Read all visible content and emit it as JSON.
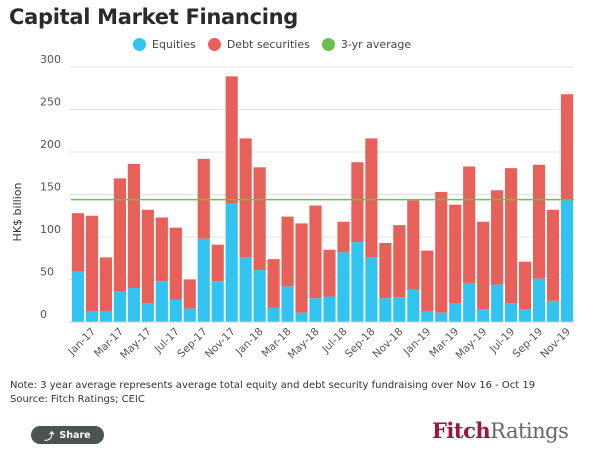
{
  "chart_data": {
    "type": "bar",
    "stacked": true,
    "title": "Capital Market Financing",
    "ylabel": "HK$ billion",
    "xlabel": "",
    "ylim": [
      0,
      300
    ],
    "y_ticks": [
      "0",
      "50",
      "100",
      "150",
      "200",
      "250",
      "300"
    ],
    "grid": true,
    "legend_placement": "top",
    "categories": [
      "Dec-16",
      "Jan-17",
      "Feb-17",
      "Mar-17",
      "Apr-17",
      "May-17",
      "Jun-17",
      "Jul-17",
      "Aug-17",
      "Sep-17",
      "Oct-17",
      "Nov-17",
      "Dec-17",
      "Jan-18",
      "Feb-18",
      "Mar-18",
      "Apr-18",
      "May-18",
      "Jun-18",
      "Jul-18",
      "Aug-18",
      "Sep-18",
      "Oct-18",
      "Nov-18",
      "Dec-18",
      "Jan-19",
      "Feb-19",
      "Mar-19",
      "Apr-19",
      "May-19",
      "Jun-19",
      "Jul-19",
      "Aug-19",
      "Sep-19",
      "Oct-19",
      "Nov-19"
    ],
    "series": [
      {
        "name": "Equities",
        "color": "#33c3f0",
        "values": [
          60,
          13,
          13,
          36,
          40,
          22,
          48,
          26,
          16,
          98,
          48,
          140,
          76,
          61,
          17,
          42,
          11,
          28,
          30,
          82,
          94,
          76,
          28,
          29,
          38,
          13,
          11,
          22,
          46,
          15,
          44,
          22,
          15,
          51,
          25,
          144
        ]
      },
      {
        "name": "Debt securities",
        "color": "#e8605a",
        "values": [
          68,
          112,
          63,
          133,
          146,
          110,
          75,
          85,
          34,
          94,
          43,
          149,
          140,
          121,
          57,
          82,
          105,
          109,
          55,
          36,
          94,
          140,
          65,
          85,
          105,
          71,
          142,
          116,
          137,
          103,
          111,
          159,
          56,
          134,
          107,
          124
        ]
      }
    ],
    "reference_line": {
      "name": "3-yr average",
      "color": "#6dbf4d",
      "value": 144
    }
  },
  "note": "Note: 3 year average represents average total equity and debt security fundraising over Nov 16 - Oct 19",
  "source": "Source: Fitch Ratings; CEIC",
  "share_label": "Share",
  "logo": {
    "part1": "Fitch",
    "part2": "Ratings"
  }
}
